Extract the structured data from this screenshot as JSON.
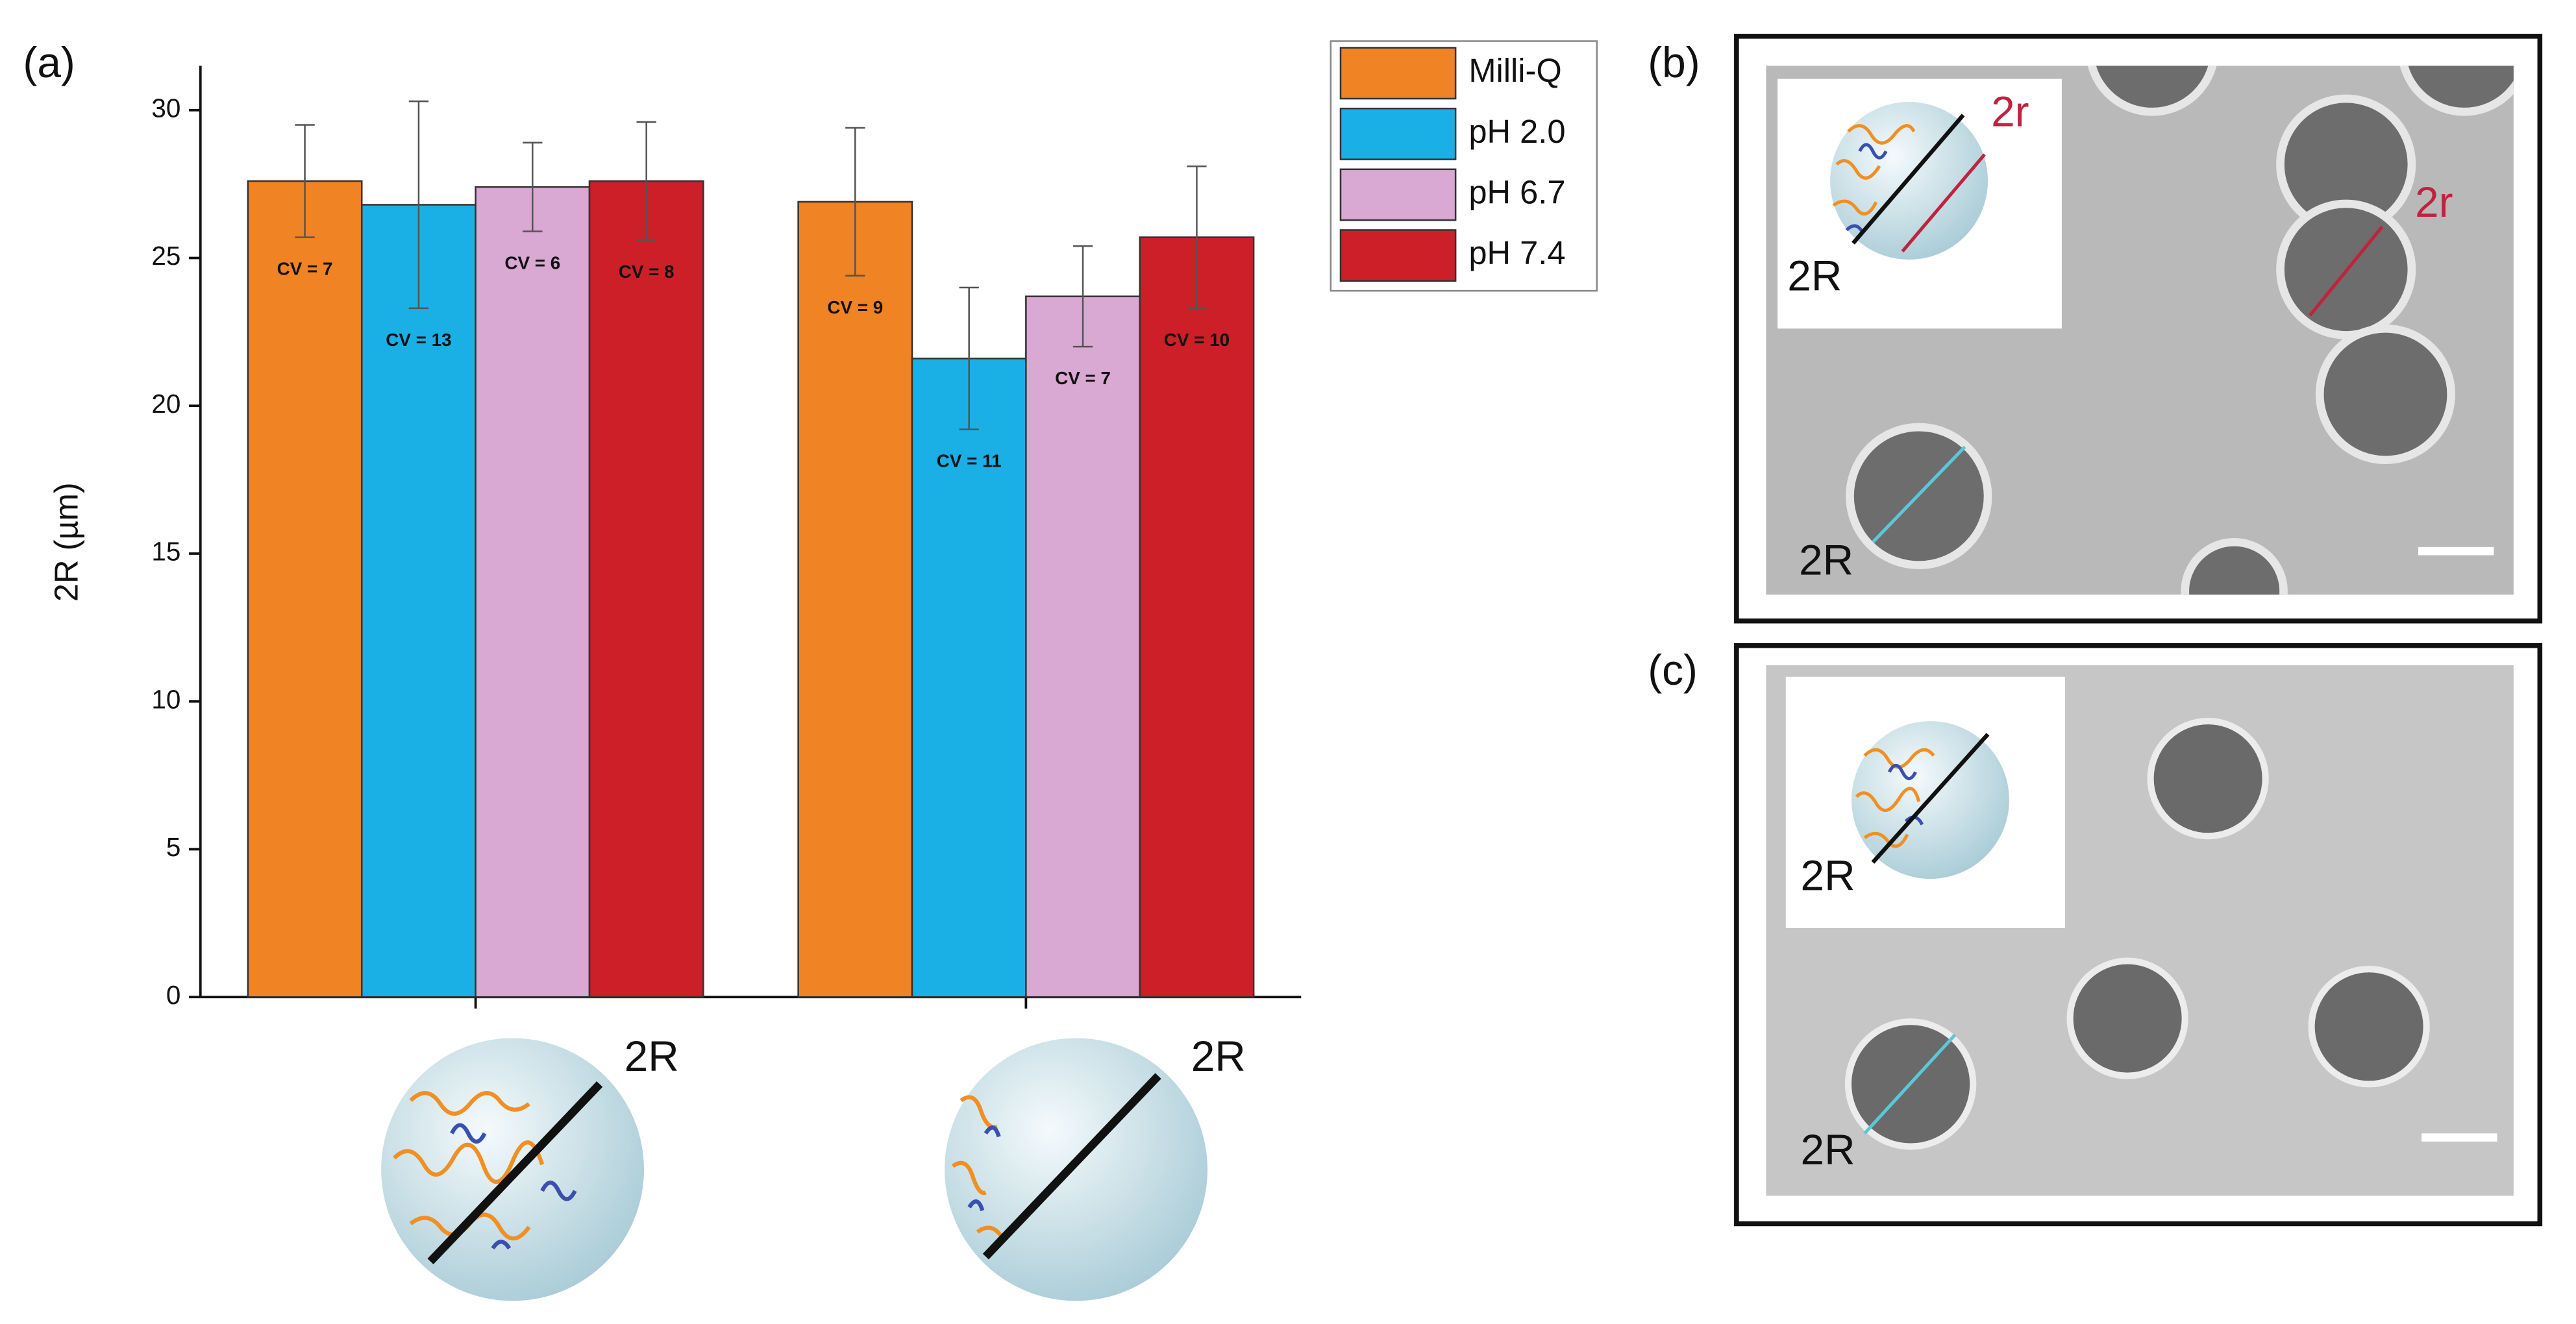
{
  "chart_data": {
    "type": "bar",
    "y_label": "2R (µm)",
    "categories": [
      null,
      null
    ],
    "ylim": [
      0,
      31.5
    ],
    "yticks": [
      0,
      5,
      10,
      15,
      20,
      25,
      30
    ],
    "legend": "outside-top-right",
    "series": [
      {
        "name": "Milli-Q",
        "color": "#f08324",
        "values": [
          27.6,
          26.9
        ],
        "errors": [
          1.9,
          2.5
        ],
        "value_labels": [
          "CV = 7",
          "CV = 9"
        ]
      },
      {
        "name": "pH 2.0",
        "color": "#1ab0e6",
        "values": [
          26.8,
          21.6
        ],
        "errors": [
          3.5,
          2.4
        ],
        "value_labels": [
          "CV = 13",
          "CV = 11"
        ]
      },
      {
        "name": "pH 6.7",
        "color": "#d9a8d3",
        "values": [
          27.4,
          23.7
        ],
        "errors": [
          1.5,
          1.7
        ],
        "value_labels": [
          "CV = 6",
          "CV = 7"
        ]
      },
      {
        "name": "pH 7.4",
        "color": "#cc1f27",
        "values": [
          27.6,
          25.7
        ],
        "errors": [
          2.0,
          2.4
        ],
        "value_labels": [
          "CV = 8",
          "CV = 10"
        ]
      }
    ]
  },
  "figure": {
    "panel_labels": [
      "(a)",
      "(b)",
      "(c)"
    ],
    "illustration_labels": [
      "2R",
      "2R"
    ],
    "micrograph_b_labels": [
      "2r",
      "2r",
      "2R",
      "2R"
    ],
    "micrograph_c_labels": [
      "2R",
      "2R"
    ]
  }
}
